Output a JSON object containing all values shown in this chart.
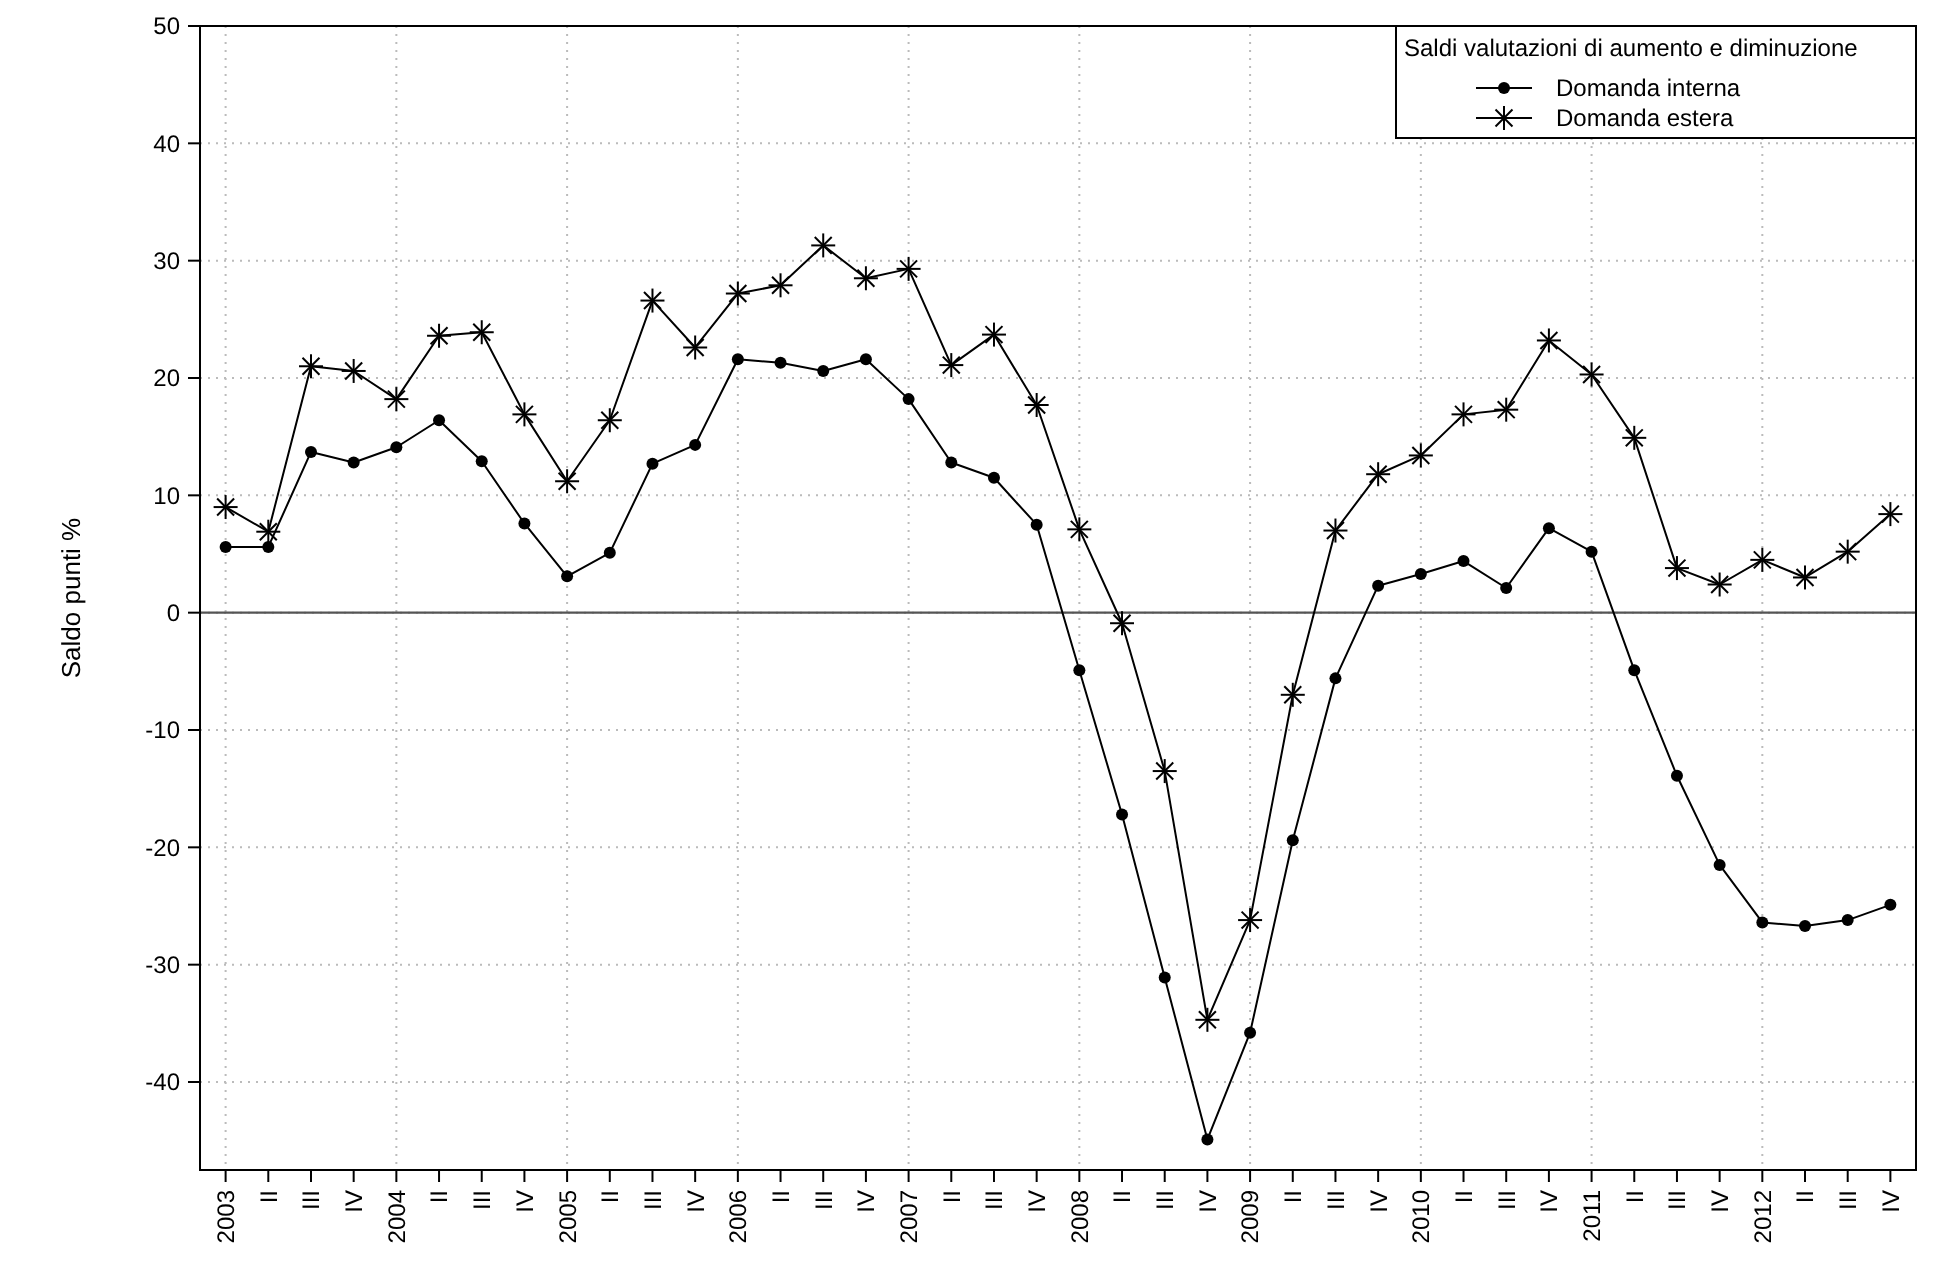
{
  "chart_data": {
    "type": "line",
    "ylabel": "Saldo punti %",
    "legend_title": "Saldi valutazioni di aumento e diminuzione",
    "legend": "top right",
    "grid": true,
    "categories": [
      "2003",
      "II",
      "III",
      "IV",
      "2004",
      "II",
      "III",
      "IV",
      "2005",
      "II",
      "III",
      "IV",
      "2006",
      "II",
      "III",
      "IV",
      "2007",
      "II",
      "III",
      "IV",
      "2008",
      "II",
      "III",
      "IV",
      "2009",
      "II",
      "III",
      "IV",
      "2010",
      "II",
      "III",
      "IV",
      "2011",
      "II",
      "III",
      "IV",
      "2012",
      "II",
      "III",
      "IV"
    ],
    "ylim": [
      -47.5,
      50
    ],
    "yticks": [
      -40,
      -30,
      -20,
      -10,
      0,
      10,
      20,
      30,
      40,
      50
    ],
    "ref_lines": [
      {
        "axis": "y",
        "value": 0,
        "color": "#555555"
      }
    ],
    "series": [
      {
        "name": "Domanda interna",
        "color": "#000000",
        "marker": "circle",
        "values": [
          5.6,
          5.6,
          13.7,
          12.8,
          14.1,
          16.4,
          12.9,
          7.6,
          3.1,
          5.1,
          12.7,
          14.3,
          21.6,
          21.3,
          20.6,
          21.6,
          18.2,
          12.8,
          11.5,
          7.5,
          -4.9,
          -17.2,
          -31.1,
          -44.9,
          -35.8,
          -19.4,
          -5.6,
          2.3,
          3.3,
          4.4,
          2.1,
          7.2,
          5.2,
          -4.9,
          -13.9,
          -21.5,
          -26.4,
          -26.7,
          -26.2,
          -24.9
        ]
      },
      {
        "name": "Domanda estera",
        "color": "#000000",
        "marker": "cross",
        "values": [
          9.0,
          6.9,
          21.0,
          20.6,
          18.2,
          23.6,
          23.9,
          16.9,
          11.2,
          16.4,
          26.6,
          22.6,
          27.2,
          27.9,
          31.3,
          28.5,
          29.3,
          21.1,
          23.7,
          17.7,
          7.1,
          -0.9,
          -13.5,
          -34.7,
          -26.2,
          -7.0,
          7.0,
          11.8,
          13.4,
          16.9,
          17.3,
          23.2,
          20.3,
          14.9,
          3.8,
          2.4,
          4.5,
          3.0,
          5.2,
          8.4
        ]
      }
    ]
  }
}
